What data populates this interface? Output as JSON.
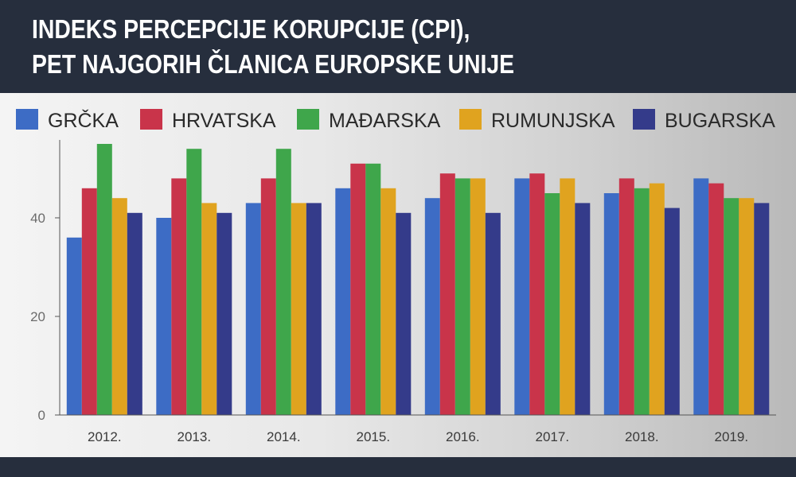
{
  "header": {
    "title_line1": "INDEKS PERCEPCIJE KORUPCIJE (CPI),",
    "title_line2": "PET NAJGORIH ČLANICA EUROPSKE UNIJE"
  },
  "colors": {
    "header_bg": "#262e3d",
    "axis": "#555555"
  },
  "chart_data": {
    "type": "bar",
    "title": "INDEKS PERCEPCIJE KORUPCIJE (CPI), PET NAJGORIH ČLANICA EUROPSKE UNIJE",
    "categories": [
      "2012.",
      "2013.",
      "2014.",
      "2015.",
      "2016.",
      "2017.",
      "2018.",
      "2019."
    ],
    "series": [
      {
        "name": "GRČKA",
        "color": "#3d6cc5",
        "values": [
          36,
          40,
          43,
          46,
          44,
          48,
          45,
          48
        ]
      },
      {
        "name": "HRVATSKA",
        "color": "#c9344a",
        "values": [
          46,
          48,
          48,
          51,
          49,
          49,
          48,
          47
        ]
      },
      {
        "name": "MAĐARSKA",
        "color": "#3fa64b",
        "values": [
          55,
          54,
          54,
          51,
          48,
          45,
          46,
          44
        ]
      },
      {
        "name": "RUMUNJSKA",
        "color": "#e0a31f",
        "values": [
          44,
          43,
          43,
          46,
          48,
          48,
          47,
          44
        ]
      },
      {
        "name": "BUGARSKA",
        "color": "#343b8a",
        "values": [
          41,
          41,
          43,
          41,
          41,
          43,
          42,
          43
        ]
      }
    ],
    "yticks": [
      0,
      20,
      40
    ],
    "ylim": [
      0,
      55
    ],
    "xlabel": "",
    "ylabel": "",
    "legend_position": "top",
    "grid": false
  }
}
